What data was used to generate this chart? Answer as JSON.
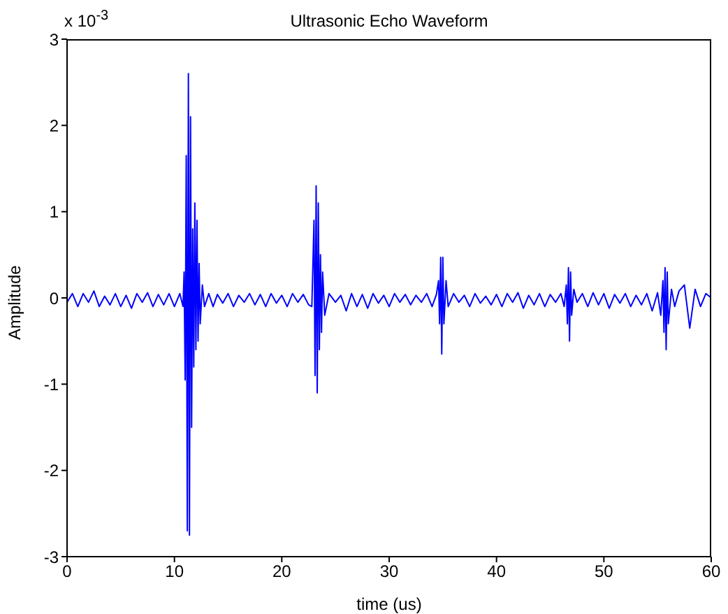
{
  "chart_data": {
    "type": "line",
    "title": "Ultrasonic Echo Waveform",
    "xlabel": "time (us)",
    "ylabel": "Amplitude",
    "annotations": [
      "x 10$^{-3}$"
    ],
    "xlim": [
      0,
      60
    ],
    "xticks": [
      0,
      10,
      20,
      30,
      40,
      50,
      60
    ],
    "ylim": [
      -3,
      3
    ],
    "yticks": [
      -3,
      -2,
      -1,
      0,
      1,
      2,
      3
    ],
    "grid": false,
    "legend": false,
    "marker": "none",
    "line_style": "solid",
    "series": [
      {
        "color": "#0000ff",
        "x": [
          0,
          0.5,
          1,
          1.5,
          2,
          2.5,
          3,
          3.5,
          4,
          4.5,
          5,
          5.5,
          6,
          6.5,
          7,
          7.5,
          8,
          8.5,
          9,
          9.5,
          10,
          10.5,
          10.8,
          10.9,
          11.0,
          11.1,
          11.2,
          11.3,
          11.4,
          11.5,
          11.6,
          11.7,
          11.8,
          11.9,
          12.0,
          12.1,
          12.2,
          12.3,
          12.4,
          12.6,
          12.8,
          13.2,
          13.6,
          14,
          14.5,
          15,
          15.5,
          16,
          16.5,
          17,
          17.5,
          18,
          18.5,
          19,
          19.5,
          20,
          20.5,
          21,
          21.5,
          22,
          22.5,
          22.8,
          23.0,
          23.1,
          23.2,
          23.3,
          23.4,
          23.5,
          23.6,
          23.7,
          23.8,
          24.0,
          24.4,
          25,
          25.5,
          26,
          26.5,
          27,
          27.5,
          28,
          28.5,
          29,
          29.5,
          30,
          30.5,
          31,
          31.5,
          32,
          32.5,
          33,
          33.5,
          34,
          34.4,
          34.6,
          34.7,
          34.8,
          34.9,
          35.0,
          35.1,
          35.3,
          35.5,
          36,
          36.5,
          37,
          37.5,
          38,
          38.5,
          39,
          39.5,
          40,
          40.5,
          41,
          41.5,
          42,
          42.5,
          43,
          43.5,
          44,
          44.5,
          45,
          45.5,
          46,
          46.3,
          46.5,
          46.6,
          46.7,
          46.8,
          46.9,
          47.0,
          47.2,
          47.5,
          48,
          48.5,
          49,
          49.5,
          50,
          50.5,
          51,
          51.5,
          52,
          52.5,
          53,
          53.5,
          54,
          54.5,
          55,
          55.3,
          55.5,
          55.6,
          55.7,
          55.8,
          55.9,
          56.0,
          56.3,
          56.6,
          57,
          57.5,
          58,
          58.5,
          59,
          59.5,
          60
        ],
        "values": [
          -0.05,
          0.05,
          -0.1,
          0.05,
          -0.05,
          0.08,
          -0.1,
          0.02,
          -0.08,
          0.05,
          -0.1,
          0.03,
          -0.12,
          0.05,
          -0.05,
          0.06,
          -0.1,
          0.04,
          -0.08,
          0.05,
          -0.1,
          0.05,
          -0.1,
          0.3,
          -0.95,
          1.65,
          -2.7,
          2.6,
          -2.75,
          2.1,
          -1.5,
          0.8,
          -0.8,
          1.1,
          -0.6,
          0.9,
          -0.5,
          0.4,
          -0.3,
          0.15,
          -0.1,
          0.05,
          -0.1,
          0.04,
          -0.06,
          0.05,
          -0.1,
          0.03,
          -0.05,
          0.05,
          -0.08,
          0.04,
          -0.1,
          0.05,
          -0.06,
          0.03,
          -0.1,
          0.05,
          -0.05,
          0.04,
          -0.08,
          -0.1,
          0.9,
          -0.9,
          1.3,
          -1.1,
          1.1,
          -0.6,
          0.5,
          -0.4,
          0.3,
          -0.2,
          0.05,
          -0.05,
          0.03,
          -0.15,
          0.05,
          -0.1,
          0.04,
          -0.12,
          0.05,
          -0.06,
          0.03,
          -0.1,
          0.05,
          -0.05,
          0.04,
          -0.08,
          0.03,
          -0.05,
          0.05,
          -0.1,
          0.04,
          0.2,
          -0.3,
          0.47,
          -0.65,
          0.47,
          -0.3,
          0.2,
          -0.1,
          0.05,
          -0.05,
          0.03,
          -0.1,
          0.05,
          -0.06,
          0.02,
          -0.08,
          0.04,
          -0.1,
          0.05,
          -0.05,
          0.06,
          -0.12,
          0.03,
          -0.08,
          0.05,
          -0.1,
          0.04,
          -0.05,
          0.05,
          -0.1,
          0.15,
          -0.3,
          0.35,
          -0.5,
          0.3,
          -0.2,
          0.1,
          -0.05,
          0.05,
          -0.1,
          0.06,
          -0.08,
          0.05,
          -0.12,
          0.04,
          -0.06,
          0.05,
          -0.1,
          0.03,
          -0.08,
          0.05,
          -0.15,
          0.06,
          -0.2,
          0.2,
          -0.4,
          0.35,
          -0.6,
          0.3,
          -0.3,
          0.1,
          -0.1,
          0.08,
          0.15,
          -0.35,
          0.1,
          -0.1,
          0.05,
          0
        ]
      }
    ]
  }
}
